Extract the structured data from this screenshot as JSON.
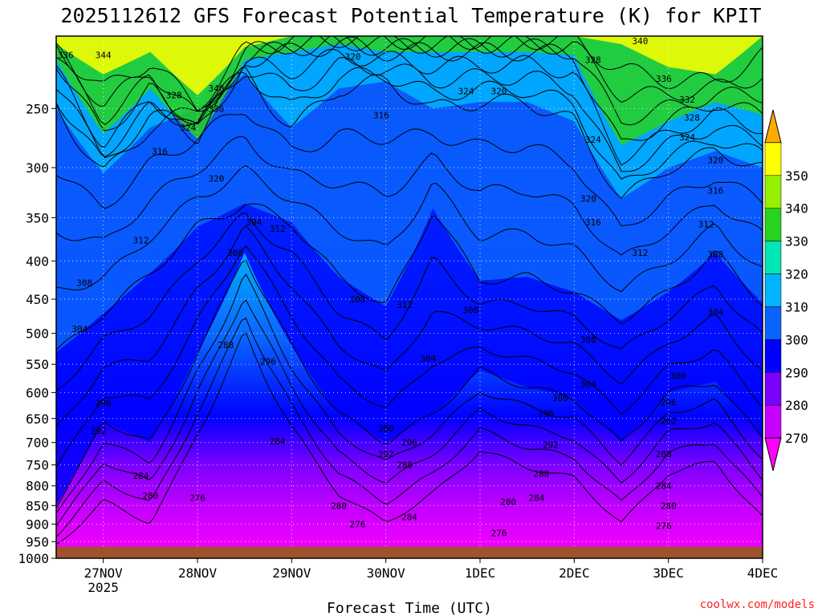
{
  "chart_data": {
    "type": "heatmap",
    "title": "2025112612 GFS Forecast Potential Temperature (K) for KPIT",
    "xlabel": "Forecast Time (UTC)",
    "ylabel": "",
    "y_axis": {
      "units": "hPa",
      "scale": "log-pressure, inverted",
      "range": [
        1000,
        200
      ],
      "ticks": [
        "250",
        "300",
        "350",
        "400",
        "450",
        "500",
        "550",
        "600",
        "650",
        "700",
        "750",
        "800",
        "850",
        "900",
        "950",
        "1000"
      ]
    },
    "x_axis": {
      "range_days": [
        26.5,
        34.0
      ],
      "ticks": [
        {
          "label": "27NOV",
          "sub": "2025",
          "day": 27
        },
        {
          "label": "28NOV",
          "sub": "",
          "day": 28
        },
        {
          "label": "29NOV",
          "sub": "",
          "day": 29
        },
        {
          "label": "30NOV",
          "sub": "",
          "day": 30
        },
        {
          "label": "1DEC",
          "sub": "",
          "day": 31
        },
        {
          "label": "2DEC",
          "sub": "",
          "day": 32
        },
        {
          "label": "3DEC",
          "sub": "",
          "day": 33
        },
        {
          "label": "4DEC",
          "sub": "",
          "day": 34
        }
      ]
    },
    "grid": true,
    "colorbar": {
      "levels": [
        "270",
        "280",
        "290",
        "300",
        "310",
        "320",
        "330",
        "340",
        "350"
      ],
      "colors": [
        "#ff00ff",
        "#c800ff",
        "#7a00ff",
        "#0000ff",
        "#0a64ff",
        "#00b4ff",
        "#00e6b4",
        "#28d21e",
        "#96f000",
        "#ffff00",
        "#ffaa00"
      ]
    },
    "series": [
      {
        "name": "300 K",
        "day": [
          26.5,
          27.0,
          27.5,
          28.0,
          28.5,
          29.0,
          29.5,
          30.0,
          30.5,
          31.0,
          31.5,
          32.0,
          32.5,
          33.0,
          33.5,
          34.0
        ],
        "pressure_hPa": [
          850,
          655,
          700,
          530,
          390,
          520,
          640,
          700,
          640,
          560,
          590,
          610,
          700,
          600,
          580,
          690
        ]
      },
      {
        "name": "310 K",
        "day": [
          26.5,
          27.0,
          27.5,
          28.0,
          28.5,
          29.0,
          29.5,
          30.0,
          30.5,
          31.0,
          31.5,
          32.0,
          32.5,
          33.0,
          33.5,
          34.0
        ],
        "pressure_hPa": [
          530,
          470,
          415,
          360,
          335,
          355,
          420,
          460,
          340,
          425,
          420,
          440,
          480,
          440,
          390,
          455
        ]
      },
      {
        "name": "320 K",
        "day": [
          26.5,
          27.0,
          27.5,
          28.0,
          28.5,
          29.0,
          29.5,
          30.0,
          30.5,
          31.0,
          31.5,
          32.0,
          32.5,
          33.0,
          33.5,
          34.0
        ],
        "pressure_hPa": [
          250,
          305,
          265,
          250,
          225,
          265,
          235,
          230,
          250,
          245,
          245,
          260,
          330,
          300,
          285,
          300
        ]
      },
      {
        "name": "330 K",
        "day": [
          26.5,
          27.0,
          27.5,
          28.0,
          28.5,
          29.0,
          29.5,
          30.0,
          30.5,
          31.0,
          31.5,
          32.0,
          32.5,
          33.0,
          33.5,
          34.0
        ],
        "pressure_hPa": [
          215,
          270,
          235,
          275,
          215,
          210,
          205,
          210,
          210,
          210,
          210,
          212,
          280,
          260,
          245,
          255
        ]
      },
      {
        "name": "340 K",
        "day": [
          26.5,
          27.0,
          27.5,
          28.0,
          28.5,
          29.0,
          29.5,
          30.0,
          30.5,
          31.0,
          31.5,
          32.0,
          32.5,
          33.0,
          33.5,
          34.0
        ],
        "pressure_hPa": [
          205,
          225,
          210,
          240,
          207,
          200,
          200,
          200,
          200,
          200,
          200,
          200,
          205,
          220,
          225,
          200
        ]
      }
    ],
    "contour_labels": [
      {
        "text": "336",
        "day": 26.6,
        "p": 212
      },
      {
        "text": "344",
        "day": 27.0,
        "p": 212
      },
      {
        "text": "328",
        "day": 27.75,
        "p": 240
      },
      {
        "text": "340",
        "day": 28.2,
        "p": 235
      },
      {
        "text": "336",
        "day": 28.2,
        "p": 250
      },
      {
        "text": "324",
        "day": 27.9,
        "p": 265
      },
      {
        "text": "316",
        "day": 27.6,
        "p": 285
      },
      {
        "text": "320",
        "day": 28.2,
        "p": 310
      },
      {
        "text": "320",
        "day": 29.65,
        "p": 213
      },
      {
        "text": "316",
        "day": 29.95,
        "p": 255
      },
      {
        "text": "324",
        "day": 30.85,
        "p": 237
      },
      {
        "text": "320",
        "day": 31.2,
        "p": 237
      },
      {
        "text": "328",
        "day": 32.2,
        "p": 215
      },
      {
        "text": "324",
        "day": 32.2,
        "p": 275
      },
      {
        "text": "340",
        "day": 32.7,
        "p": 203
      },
      {
        "text": "336",
        "day": 32.95,
        "p": 228
      },
      {
        "text": "332",
        "day": 33.2,
        "p": 243
      },
      {
        "text": "328",
        "day": 33.25,
        "p": 257
      },
      {
        "text": "324",
        "day": 33.2,
        "p": 273
      },
      {
        "text": "320",
        "day": 33.5,
        "p": 293
      },
      {
        "text": "316",
        "day": 33.5,
        "p": 322
      },
      {
        "text": "320",
        "day": 32.15,
        "p": 330
      },
      {
        "text": "316",
        "day": 32.2,
        "p": 355
      },
      {
        "text": "312",
        "day": 27.4,
        "p": 375
      },
      {
        "text": "304",
        "day": 28.6,
        "p": 355
      },
      {
        "text": "312",
        "day": 28.85,
        "p": 362
      },
      {
        "text": "300",
        "day": 28.4,
        "p": 390
      },
      {
        "text": "312",
        "day": 32.7,
        "p": 390
      },
      {
        "text": "312",
        "day": 33.4,
        "p": 357
      },
      {
        "text": "308",
        "day": 33.5,
        "p": 392
      },
      {
        "text": "308",
        "day": 26.8,
        "p": 428
      },
      {
        "text": "308",
        "day": 29.7,
        "p": 450
      },
      {
        "text": "312",
        "day": 30.2,
        "p": 458
      },
      {
        "text": "308",
        "day": 30.9,
        "p": 465
      },
      {
        "text": "304",
        "day": 33.5,
        "p": 468
      },
      {
        "text": "304",
        "day": 26.75,
        "p": 493
      },
      {
        "text": "308",
        "day": 32.15,
        "p": 510
      },
      {
        "text": "288",
        "day": 28.3,
        "p": 518
      },
      {
        "text": "296",
        "day": 28.75,
        "p": 545
      },
      {
        "text": "304",
        "day": 30.45,
        "p": 540
      },
      {
        "text": "304",
        "day": 32.15,
        "p": 585
      },
      {
        "text": "300",
        "day": 33.1,
        "p": 570
      },
      {
        "text": "296",
        "day": 27.0,
        "p": 620
      },
      {
        "text": "300",
        "day": 31.85,
        "p": 610
      },
      {
        "text": "296",
        "day": 33.0,
        "p": 618
      },
      {
        "text": "296",
        "day": 31.7,
        "p": 640
      },
      {
        "text": "292",
        "day": 33.0,
        "p": 655
      },
      {
        "text": "300",
        "day": 30.0,
        "p": 670
      },
      {
        "text": "292",
        "day": 26.95,
        "p": 675
      },
      {
        "text": "284",
        "day": 28.85,
        "p": 697
      },
      {
        "text": "296",
        "day": 30.25,
        "p": 700
      },
      {
        "text": "292",
        "day": 31.75,
        "p": 705
      },
      {
        "text": "292",
        "day": 30.0,
        "p": 725
      },
      {
        "text": "288",
        "day": 32.95,
        "p": 725
      },
      {
        "text": "288",
        "day": 30.2,
        "p": 750
      },
      {
        "text": "284",
        "day": 27.4,
        "p": 775
      },
      {
        "text": "288",
        "day": 31.65,
        "p": 770
      },
      {
        "text": "284",
        "day": 32.95,
        "p": 800
      },
      {
        "text": "280",
        "day": 27.5,
        "p": 825
      },
      {
        "text": "276",
        "day": 28.0,
        "p": 830
      },
      {
        "text": "280",
        "day": 29.5,
        "p": 850
      },
      {
        "text": "284",
        "day": 31.6,
        "p": 830
      },
      {
        "text": "280",
        "day": 31.3,
        "p": 840
      },
      {
        "text": "280",
        "day": 33.0,
        "p": 850
      },
      {
        "text": "284",
        "day": 30.25,
        "p": 880
      },
      {
        "text": "276",
        "day": 29.7,
        "p": 900
      },
      {
        "text": "276",
        "day": 32.95,
        "p": 905
      },
      {
        "text": "276",
        "day": 31.2,
        "p": 925
      }
    ],
    "ground_level_hPa": 965,
    "credit": "coolwx.com/models"
  }
}
